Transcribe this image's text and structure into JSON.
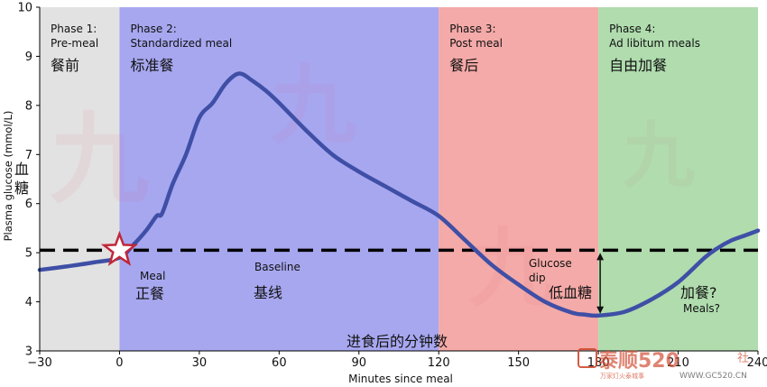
{
  "chart_data": {
    "type": "line",
    "title": "",
    "xlabel": "Minutes since meal",
    "xlabel_cn": "进食后的分钟数",
    "ylabel": "Plasma glucose (mmol/L)",
    "ylabel_cn": [
      "血",
      "糖"
    ],
    "xlim": [
      -30,
      240
    ],
    "ylim": [
      3,
      10
    ],
    "xticks": [
      -30,
      0,
      30,
      60,
      90,
      120,
      150,
      180,
      210,
      240
    ],
    "yticks": [
      3,
      4,
      5,
      6,
      7,
      8,
      9,
      10
    ],
    "grid": false,
    "baseline": 5.05,
    "phases": [
      {
        "en_line1": "Phase 1:",
        "en_line2": "Pre-meal",
        "cn": "餐前",
        "x_start": -30,
        "x_end": 0,
        "color": "#e2e2e2"
      },
      {
        "en_line1": "Phase 2:",
        "en_line2": "Standardized meal",
        "cn": "标准餐",
        "x_start": 0,
        "x_end": 120,
        "color": "#a7a7f0"
      },
      {
        "en_line1": "Phase 3:",
        "en_line2": "Post meal",
        "cn": "餐后",
        "x_start": 120,
        "x_end": 180,
        "color": "#f4aaa8"
      },
      {
        "en_line1": "Phase 4:",
        "en_line2": "Ad libitum meals",
        "cn": "自由加餐",
        "x_start": 180,
        "x_end": 240,
        "color": "#b0dcae"
      }
    ],
    "series": [
      {
        "color": "#3f4fa6",
        "x": [
          -30,
          -20,
          -10,
          0,
          5,
          10,
          14,
          16,
          20,
          25,
          30,
          35,
          40,
          45,
          50,
          55,
          60,
          70,
          80,
          90,
          100,
          110,
          120,
          130,
          140,
          150,
          160,
          170,
          175,
          180,
          190,
          200,
          210,
          220,
          225,
          230,
          235,
          240
        ],
        "y": [
          4.65,
          4.72,
          4.8,
          4.9,
          5.15,
          5.45,
          5.75,
          5.8,
          6.4,
          7.0,
          7.75,
          8.05,
          8.45,
          8.65,
          8.5,
          8.3,
          8.05,
          7.5,
          7.0,
          6.65,
          6.35,
          6.05,
          5.75,
          5.25,
          4.75,
          4.35,
          4.0,
          3.78,
          3.74,
          3.72,
          3.8,
          4.05,
          4.4,
          4.9,
          5.1,
          5.25,
          5.35,
          5.45
        ]
      }
    ],
    "annotations": {
      "baseline_en": "Baseline",
      "baseline_cn": "基线",
      "meal_en": "Meal",
      "meal_cn": "正餐",
      "dip_en_1": "Glucose",
      "dip_en_2": "dip",
      "dip_cn": "低血糖",
      "meals_cn": "加餐?",
      "meals_en": "Meals?"
    }
  },
  "watermark": {
    "cn": "泰顺520",
    "sub": "万家灯火泰城事",
    "url": "WWW.GC520.CN",
    "she": "社"
  }
}
